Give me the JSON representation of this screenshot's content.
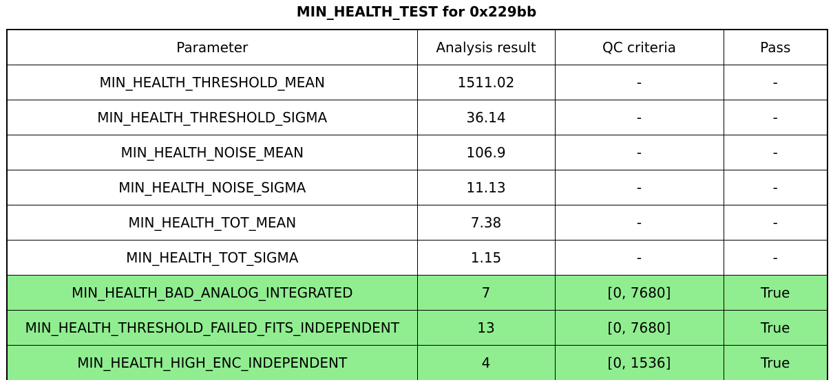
{
  "title": "MIN_HEALTH_TEST for 0x229bb",
  "colors": {
    "pass_row_background": "#90ee90",
    "row_background": "#ffffff",
    "border": "#000000",
    "text": "#000000"
  },
  "table": {
    "columns": [
      "Parameter",
      "Analysis result",
      "QC criteria",
      "Pass"
    ],
    "rows": [
      {
        "parameter": "MIN_HEALTH_THRESHOLD_MEAN",
        "result": "1511.02",
        "qc": "-",
        "pass": "-",
        "highlight": false
      },
      {
        "parameter": "MIN_HEALTH_THRESHOLD_SIGMA",
        "result": "36.14",
        "qc": "-",
        "pass": "-",
        "highlight": false
      },
      {
        "parameter": "MIN_HEALTH_NOISE_MEAN",
        "result": "106.9",
        "qc": "-",
        "pass": "-",
        "highlight": false
      },
      {
        "parameter": "MIN_HEALTH_NOISE_SIGMA",
        "result": "11.13",
        "qc": "-",
        "pass": "-",
        "highlight": false
      },
      {
        "parameter": "MIN_HEALTH_TOT_MEAN",
        "result": "7.38",
        "qc": "-",
        "pass": "-",
        "highlight": false
      },
      {
        "parameter": "MIN_HEALTH_TOT_SIGMA",
        "result": "1.15",
        "qc": "-",
        "pass": "-",
        "highlight": false
      },
      {
        "parameter": "MIN_HEALTH_BAD_ANALOG_INTEGRATED",
        "result": "7",
        "qc": "[0, 7680]",
        "pass": "True",
        "highlight": true
      },
      {
        "parameter": "MIN_HEALTH_THRESHOLD_FAILED_FITS_INDEPENDENT",
        "result": "13",
        "qc": "[0, 7680]",
        "pass": "True",
        "highlight": true
      },
      {
        "parameter": "MIN_HEALTH_HIGH_ENC_INDEPENDENT",
        "result": "4",
        "qc": "[0, 1536]",
        "pass": "True",
        "highlight": true
      }
    ]
  },
  "chart_data": {
    "type": "table",
    "title": "MIN_HEALTH_TEST for 0x229bb",
    "columns": [
      "Parameter",
      "Analysis result",
      "QC criteria",
      "Pass"
    ],
    "rows": [
      [
        "MIN_HEALTH_THRESHOLD_MEAN",
        "1511.02",
        "-",
        "-"
      ],
      [
        "MIN_HEALTH_THRESHOLD_SIGMA",
        "36.14",
        "-",
        "-"
      ],
      [
        "MIN_HEALTH_NOISE_MEAN",
        "106.9",
        "-",
        "-"
      ],
      [
        "MIN_HEALTH_NOISE_SIGMA",
        "11.13",
        "-",
        "-"
      ],
      [
        "MIN_HEALTH_TOT_MEAN",
        "7.38",
        "-",
        "-"
      ],
      [
        "MIN_HEALTH_TOT_SIGMA",
        "1.15",
        "-",
        "-"
      ],
      [
        "MIN_HEALTH_BAD_ANALOG_INTEGRATED",
        "7",
        "[0, 7680]",
        "True"
      ],
      [
        "MIN_HEALTH_THRESHOLD_FAILED_FITS_INDEPENDENT",
        "13",
        "[0, 7680]",
        "True"
      ],
      [
        "MIN_HEALTH_HIGH_ENC_INDEPENDENT",
        "4",
        "[0, 1536]",
        "True"
      ]
    ],
    "highlighted_rows": [
      6,
      7,
      8
    ],
    "highlight_color": "#90ee90",
    "layout": "header row on top, all cells center-aligned, black grid lines"
  }
}
